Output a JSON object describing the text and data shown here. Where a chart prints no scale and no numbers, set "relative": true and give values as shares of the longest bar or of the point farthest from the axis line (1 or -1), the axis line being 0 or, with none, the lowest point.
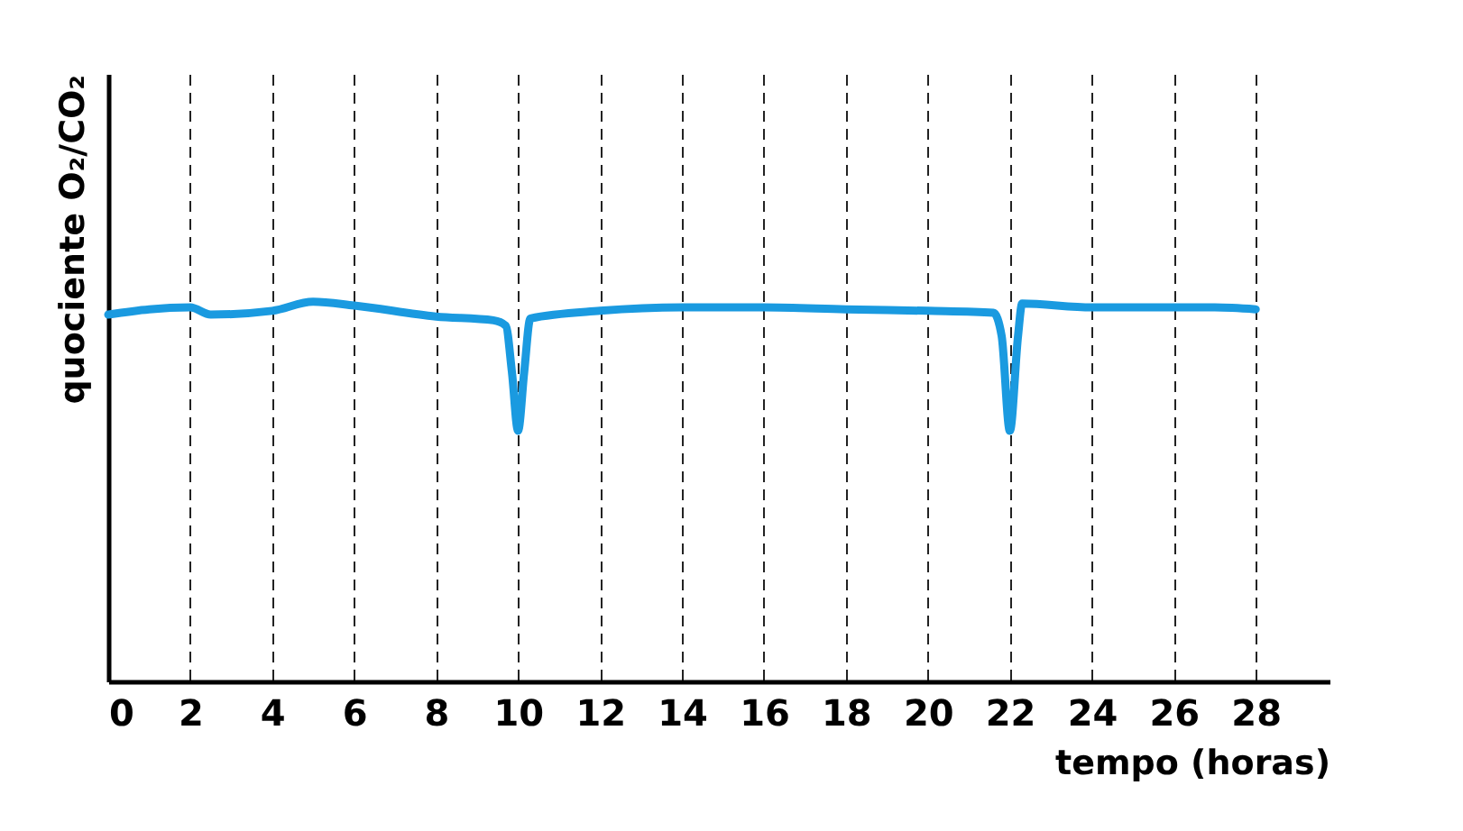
{
  "chart_data": {
    "type": "line",
    "relative": true,
    "xlabel": "tempo (horas)",
    "ylabel": "quociente O₂/CO₂",
    "xlim": [
      0,
      29.8
    ],
    "xticks": [
      0,
      2,
      4,
      6,
      8,
      10,
      12,
      14,
      16,
      18,
      20,
      22,
      24,
      26,
      28
    ],
    "grid": "x",
    "line_style": "solid",
    "marker": "none",
    "series": [
      {
        "color": "#1a9ae0",
        "x": [
          0,
          1,
          2,
          2.5,
          4,
          5,
          6,
          8,
          9.4,
          9.7,
          9.85,
          10,
          10.15,
          10.3,
          12,
          14,
          16,
          18,
          20,
          21.6,
          21.8,
          22,
          22.2,
          22.3,
          24,
          26,
          27,
          28
        ],
        "values": [
          0.966,
          0.98,
          0.985,
          0.966,
          0.976,
          1.0,
          0.99,
          0.961,
          0.951,
          0.937,
          0.815,
          0.66,
          0.815,
          0.956,
          0.976,
          0.985,
          0.985,
          0.98,
          0.976,
          0.971,
          0.91,
          0.66,
          0.91,
          0.995,
          0.985,
          0.985,
          0.985,
          0.98
        ]
      }
    ]
  }
}
